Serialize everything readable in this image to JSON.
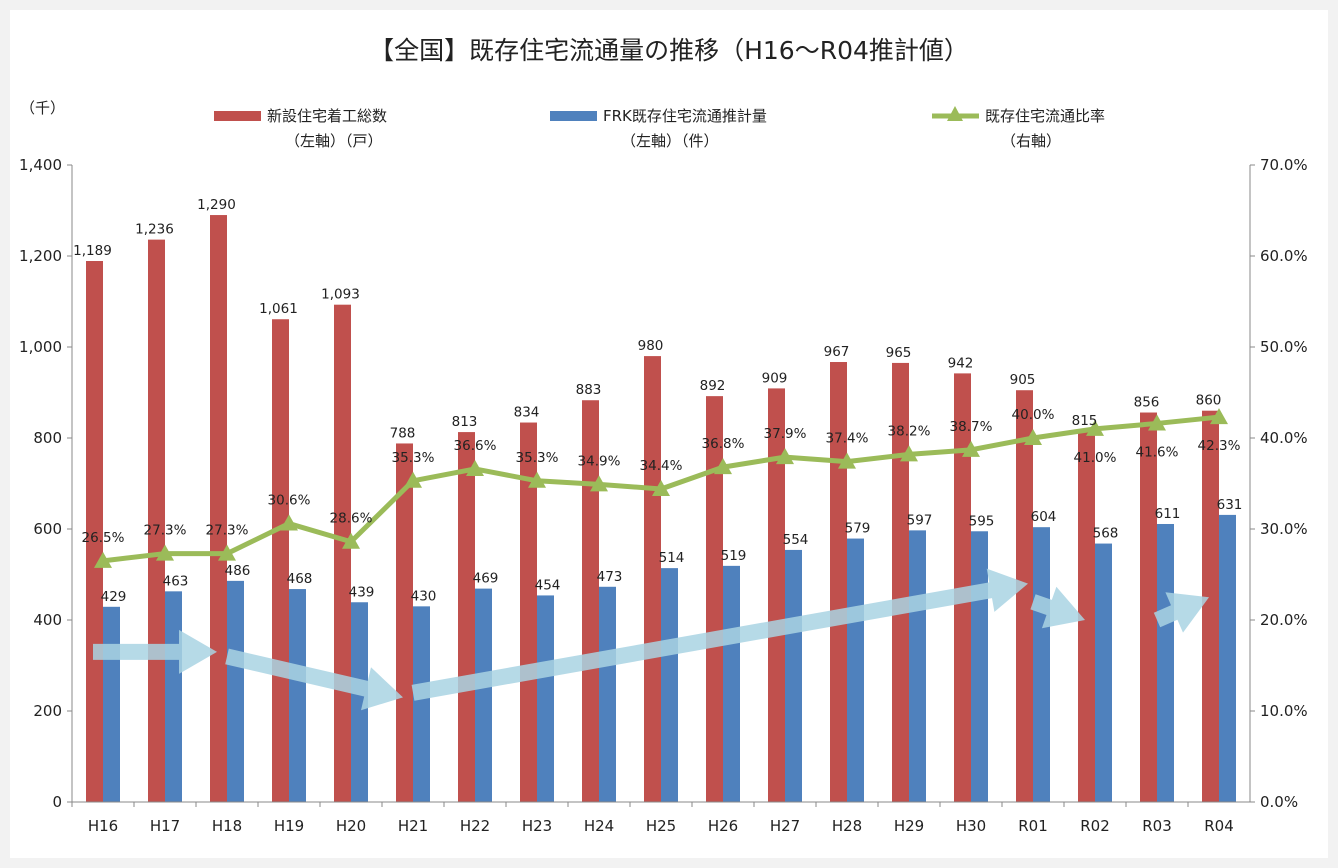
{
  "chart_data": {
    "type": "bar",
    "title": "【全国】既存住宅流通量の推移（H16〜R04推計値）",
    "left_unit": "（千）",
    "categories": [
      "H16",
      "H17",
      "H18",
      "H19",
      "H20",
      "H21",
      "H22",
      "H23",
      "H24",
      "H25",
      "H26",
      "H27",
      "H28",
      "H29",
      "H30",
      "R01",
      "R02",
      "R03",
      "R04"
    ],
    "series": [
      {
        "name": "新設住宅着工総数",
        "sub": "（左軸）（戸）",
        "axis": "left",
        "kind": "bar",
        "color": "#c0504d",
        "values": [
          1189,
          1236,
          1290,
          1061,
          1093,
          788,
          813,
          834,
          883,
          980,
          892,
          909,
          967,
          965,
          942,
          905,
          815,
          856,
          860
        ],
        "labels": [
          "1,189",
          "1,236",
          "1,290",
          "1,061",
          "1,093",
          "788",
          "813",
          "834",
          "883",
          "980",
          "892",
          "909",
          "967",
          "965",
          "942",
          "905",
          "815",
          "856",
          "860"
        ]
      },
      {
        "name": "FRK既存住宅流通推計量",
        "sub": "（左軸）（件）",
        "axis": "left",
        "kind": "bar",
        "color": "#4f81bd",
        "values": [
          429,
          463,
          486,
          468,
          439,
          430,
          469,
          454,
          473,
          514,
          519,
          554,
          579,
          597,
          595,
          604,
          568,
          611,
          631
        ],
        "labels": [
          "429",
          "463",
          "486",
          "468",
          "439",
          "430",
          "469",
          "454",
          "473",
          "514",
          "519",
          "554",
          "579",
          "597",
          "595",
          "604",
          "568",
          "611",
          "631"
        ]
      },
      {
        "name": "既存住宅流通比率",
        "sub": "（右軸）",
        "axis": "right",
        "kind": "line",
        "color": "#9bbb59",
        "values": [
          26.5,
          27.3,
          27.3,
          30.6,
          28.6,
          35.3,
          36.6,
          35.3,
          34.9,
          34.4,
          36.8,
          37.9,
          37.4,
          38.2,
          38.7,
          40.0,
          41.0,
          41.6,
          42.3
        ],
        "labels": [
          "26.5%",
          "27.3%",
          "27.3%",
          "30.6%",
          "28.6%",
          "35.3%",
          "36.6%",
          "35.3%",
          "34.9%",
          "34.4%",
          "36.8%",
          "37.9%",
          "37.4%",
          "38.2%",
          "38.7%",
          "40.0%",
          "41.0%",
          "41.6%",
          "42.3%"
        ]
      }
    ],
    "y_left": {
      "range": [
        0,
        1400
      ],
      "ticks": [
        0,
        200,
        400,
        600,
        800,
        1000,
        1200,
        1400
      ],
      "tick_labels": [
        "0",
        "200",
        "400",
        "600",
        "800",
        "1,000",
        "1,200",
        "1,400"
      ]
    },
    "y_right": {
      "range": [
        0,
        70
      ],
      "ticks": [
        0,
        10,
        20,
        30,
        40,
        50,
        60,
        70
      ],
      "tick_labels": [
        "0.0%",
        "10.0%",
        "20.0%",
        "30.0%",
        "40.0%",
        "50.0%",
        "60.0%",
        "70.0%"
      ]
    },
    "trend_arrows": [
      {
        "from": "H16",
        "to": "H18",
        "from_value": 330,
        "to_value": 330
      },
      {
        "from": "H18",
        "to": "H21",
        "from_value": 320,
        "to_value": 230
      },
      {
        "from": "H21",
        "to": "R01",
        "from_value": 240,
        "to_value": 480
      },
      {
        "from": "R01",
        "to": "R02",
        "from_value": 440,
        "to_value": 400
      },
      {
        "from": "R03",
        "to": "R04",
        "from_value": 400,
        "to_value": 450
      }
    ],
    "arrow_color": "#a9d3e3"
  }
}
